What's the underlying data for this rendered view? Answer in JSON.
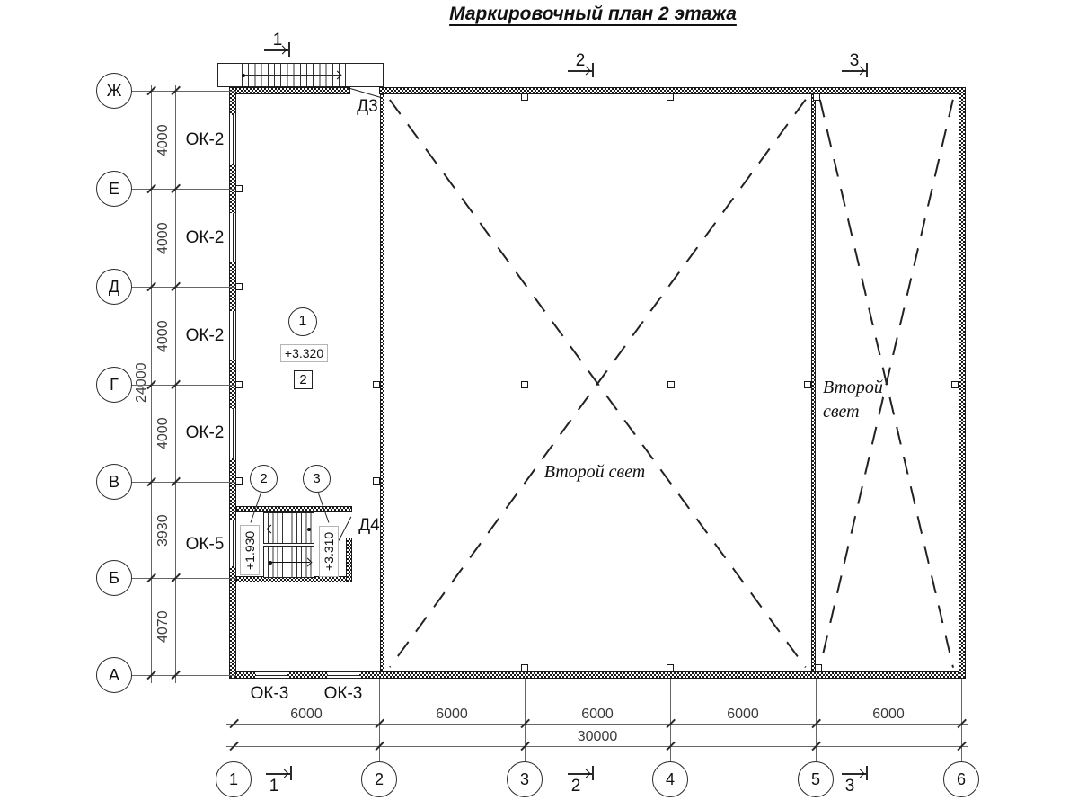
{
  "title": "Маркировочный план 2 этажа",
  "axes": {
    "rows": [
      {
        "label": "Ж"
      },
      {
        "label": "Е"
      },
      {
        "label": "Д"
      },
      {
        "label": "Г"
      },
      {
        "label": "В"
      },
      {
        "label": "Б"
      },
      {
        "label": "А"
      }
    ],
    "cols": [
      {
        "label": "1"
      },
      {
        "label": "2"
      },
      {
        "label": "3"
      },
      {
        "label": "4"
      },
      {
        "label": "5"
      },
      {
        "label": "6"
      }
    ]
  },
  "dims": {
    "left": {
      "segments": [
        "4000",
        "4000",
        "4000",
        "4000",
        "3930",
        "4070"
      ],
      "total": "24000"
    },
    "bottom": {
      "segments": [
        "6000",
        "6000",
        "6000",
        "6000",
        "6000"
      ],
      "total": "30000"
    }
  },
  "windows": {
    "ok2_label": "ОК-2",
    "ok5_label": "ОК-5",
    "ok3_label": "ОК-3"
  },
  "doors": {
    "d3": "Д3",
    "d4": "Д4"
  },
  "levels": {
    "hall": "+3.320",
    "stair_lower": "+1.930",
    "stair_upper": "+3.310"
  },
  "callouts": {
    "c1": "1",
    "c2": "2",
    "c3": "3",
    "box2": "2"
  },
  "sections": {
    "s1": "1",
    "s2": "2",
    "s3": "3"
  },
  "rooms": {
    "second_light": "Второй свет",
    "second_light_l1": "Второй",
    "second_light_l2": "свет"
  },
  "colors": {
    "ink": "#1a1a1a",
    "dim": "#3a3a3a"
  }
}
